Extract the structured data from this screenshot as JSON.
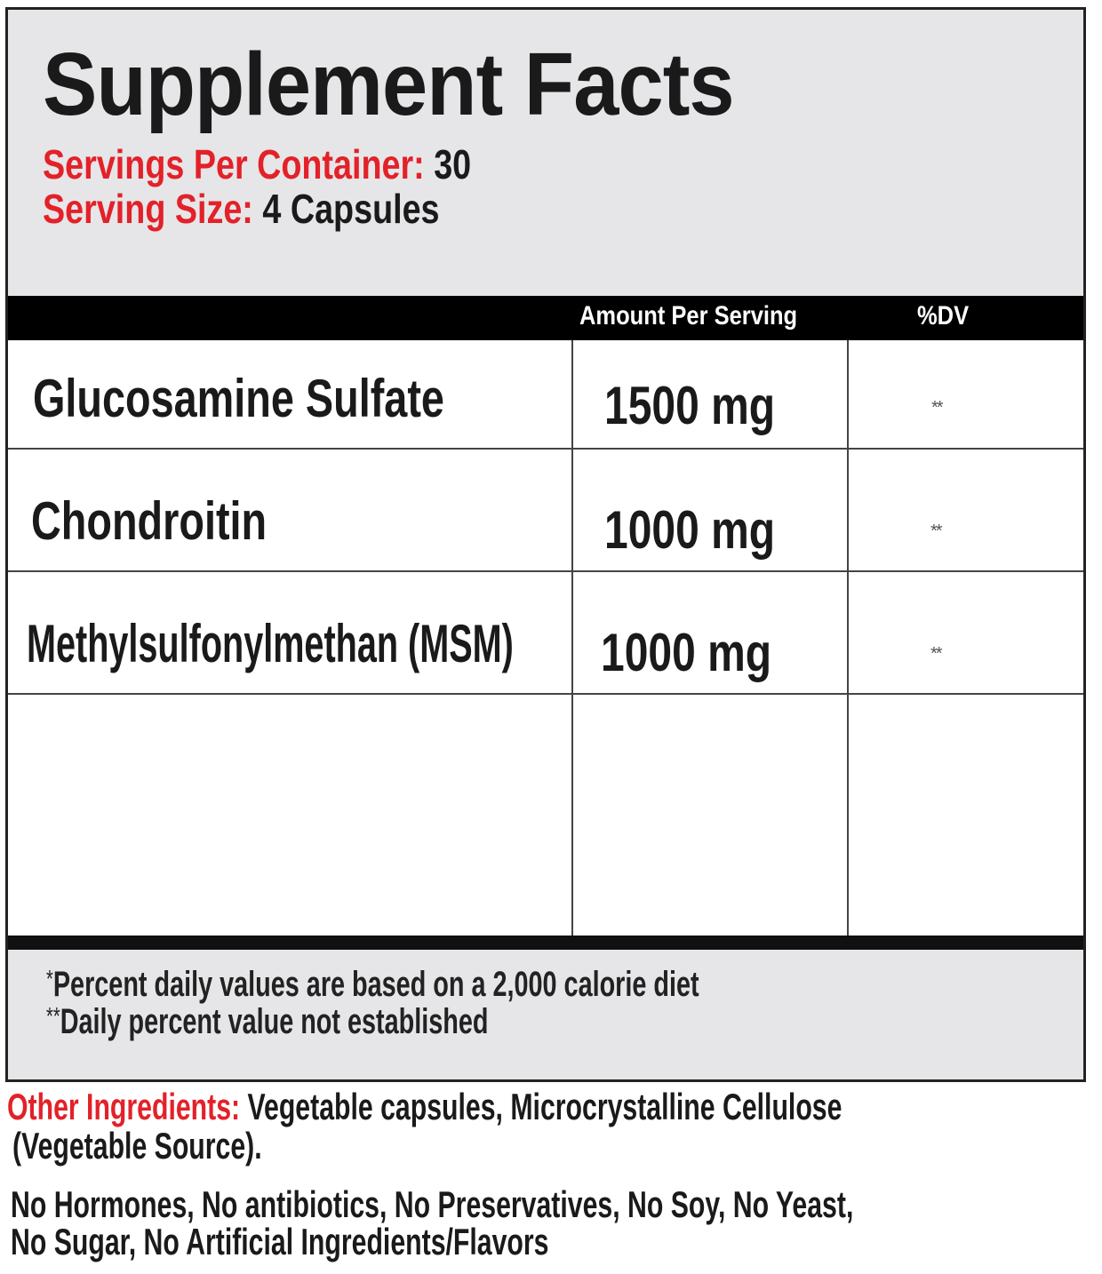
{
  "title": "Supplement Facts",
  "servings_per_container": {
    "label": "Servings Per Container:",
    "value": "30"
  },
  "serving_size": {
    "label": "Serving Size:",
    "value": "4",
    "unit": "Capsules"
  },
  "table": {
    "headers": {
      "amount": "Amount Per Serving",
      "dv": "%DV"
    },
    "rows": [
      {
        "name": "Glucosamine Sulfate",
        "amount": "1500 mg",
        "dv": "**"
      },
      {
        "name": "Chondroitin",
        "amount": "1000 mg",
        "dv": "**"
      },
      {
        "name": "Methylsulfonylmethan (MSM)",
        "amount": "1000 mg",
        "dv": "**"
      }
    ]
  },
  "footnotes": [
    {
      "mark": "*",
      "text": "Percent daily values are based on a 2,000 calorie diet"
    },
    {
      "mark": "**",
      "text": "Daily percent value not established"
    }
  ],
  "other_ingredients": {
    "label": "Other Ingredients:",
    "line1": "Vegetable capsules, Microcrystalline Cellulose",
    "line2": "(Vegetable Source)."
  },
  "claims": {
    "line1": "No Hormones, No antibiotics, No Preservatives, No Soy, No Yeast,",
    "line2": "No Sugar, No Artificial Ingredients/Flavors"
  },
  "colors": {
    "accent": "#e32129",
    "panel_gray": "#e6e6e8",
    "text": "#1a1a1a"
  }
}
